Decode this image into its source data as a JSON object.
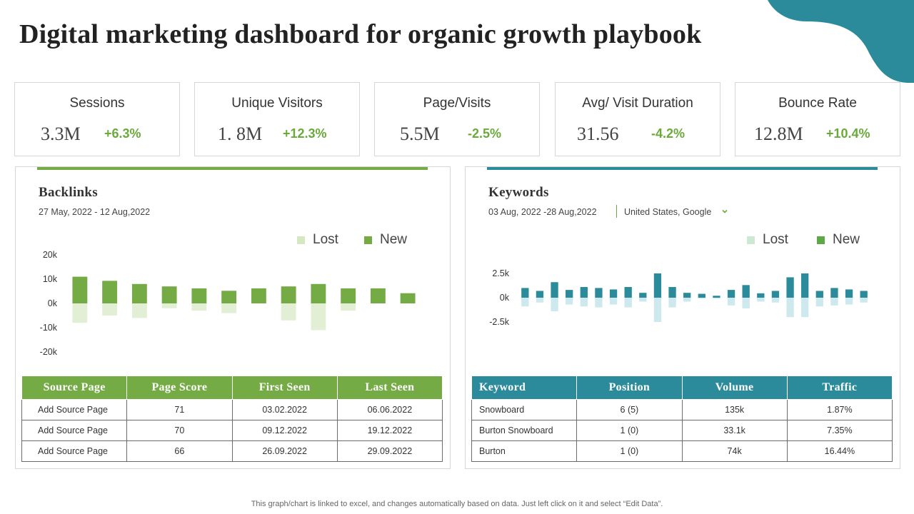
{
  "page": {
    "title": "Digital marketing dashboard for organic growth playbook",
    "footer_note": "This graph/chart is linked to excel,  and changes automatically based on data. Just left click on it and select “Edit Data”."
  },
  "colors": {
    "green": "#74ab45",
    "green_light": "#e2efd5",
    "teal": "#2b8b9b",
    "teal_light": "#cde9ee",
    "positive_text": "#6aaa3a",
    "corner": "#2b8b9b"
  },
  "kpis": [
    {
      "label": "Sessions",
      "value": "3.3M",
      "delta": "+6.3%"
    },
    {
      "label": "Unique Visitors",
      "value": "1. 8M",
      "delta": "+12.3%"
    },
    {
      "label": "Page/Visits",
      "value": "5.5M",
      "delta": "-2.5%"
    },
    {
      "label": "Avg/ Visit Duration",
      "value": "31.56",
      "delta": "-4.2%"
    },
    {
      "label": "Bounce Rate",
      "value": "12.8M",
      "delta": "+10.4%"
    }
  ],
  "backlinks": {
    "title": "Backlinks",
    "date_range": "27 May, 2022 - 12 Aug,2022",
    "table": {
      "columns": [
        "Source Page",
        "Page Score",
        "First Seen",
        "Last Seen"
      ],
      "rows": [
        [
          "Add Source Page",
          "71",
          "03.02.2022",
          "06.06.2022"
        ],
        [
          "Add Source Page",
          "70",
          "09.12.2022",
          "19.12.2022"
        ],
        [
          "Add Source Page",
          "66",
          "26.09.2022",
          "29.09.2022"
        ]
      ]
    }
  },
  "keywords": {
    "title": "Keywords",
    "date_range": "03 Aug, 2022 -28 Aug,2022",
    "region": "United States, Google",
    "table": {
      "columns": [
        "Keyword",
        "Position",
        "Volume",
        "Traffic"
      ],
      "rows": [
        [
          "Snowboard",
          "6 (5)",
          "135k",
          "1.87%"
        ],
        [
          "Burton Snowboard",
          "1 (0)",
          "33.1k",
          "7.35%"
        ],
        [
          "Burton",
          "1 (0)",
          "74k",
          "16.44%"
        ]
      ]
    }
  },
  "chart_data": [
    {
      "type": "bar",
      "title": "Backlinks",
      "ylim": [
        -20000,
        20000
      ],
      "yticks": [
        20000,
        10000,
        0,
        -10000,
        -20000
      ],
      "ytick_labels": [
        "20k",
        "10k",
        "0k",
        "-10k",
        "-20k"
      ],
      "legend": [
        "Lost",
        "New"
      ],
      "legend_position": "top-right",
      "grid": false,
      "series": [
        {
          "name": "New",
          "values": [
            11000,
            9300,
            8000,
            7000,
            6200,
            5200,
            6200,
            7000,
            8000,
            6200,
            6200,
            4200
          ]
        },
        {
          "name": "Lost",
          "values": [
            -8000,
            -5000,
            -6000,
            -2000,
            -3000,
            -4000,
            0,
            -7000,
            -11000,
            -3000,
            0,
            0
          ]
        }
      ]
    },
    {
      "type": "bar",
      "title": "Keywords",
      "ylim": [
        -2500,
        2500
      ],
      "yticks": [
        2500,
        0,
        -2500
      ],
      "ytick_labels": [
        "2.5k",
        "0k",
        "-2.5k"
      ],
      "legend": [
        "Lost",
        "New"
      ],
      "legend_position": "top-right",
      "grid": false,
      "series": [
        {
          "name": "New",
          "values": [
            1000,
            700,
            1600,
            800,
            1100,
            1000,
            850,
            1100,
            500,
            2500,
            1100,
            500,
            400,
            200,
            800,
            1300,
            450,
            700,
            2100,
            2500,
            700,
            1000,
            850,
            700
          ]
        },
        {
          "name": "Lost",
          "values": [
            -900,
            -500,
            -1400,
            -700,
            -900,
            -1000,
            -700,
            -1000,
            -400,
            -2500,
            -1000,
            -400,
            -100,
            -100,
            -800,
            -1100,
            -400,
            -500,
            -2000,
            -2000,
            -900,
            -800,
            -700,
            -500
          ]
        }
      ]
    }
  ]
}
